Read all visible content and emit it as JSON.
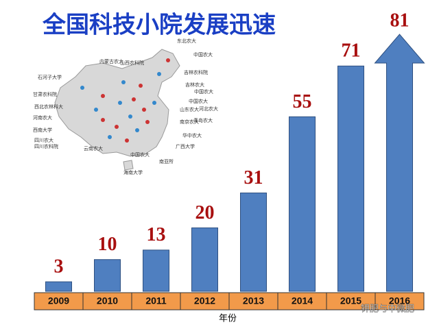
{
  "chart_data": {
    "type": "bar",
    "title": "全国科技小院发展迅速",
    "categories": [
      "2009",
      "2010",
      "2011",
      "2012",
      "2013",
      "2014",
      "2015",
      "2016"
    ],
    "values": [
      3,
      10,
      13,
      20,
      31,
      55,
      71,
      81
    ],
    "color": "#4f7fc0",
    "axis_color": "#f29a4a",
    "x_label": "年份",
    "map_labels": [
      "东北农大",
      "内蒙古农大",
      "山西农科院",
      "中国农大",
      "石河子大学",
      "吉林农科院",
      "甘肃农科院",
      "吉林农大",
      "中国农大",
      "西北农林科大",
      "中国农大",
      "河北农大",
      "河南农大",
      "山东农大",
      "南京农大",
      "青岛农大",
      "西南大学",
      "华中农大",
      "四川农大",
      "四川农科院",
      "广西大学",
      "云南农大",
      "中国农大",
      "南亚所",
      "海南大学"
    ],
    "watermark": "钾肥与中微肥"
  }
}
